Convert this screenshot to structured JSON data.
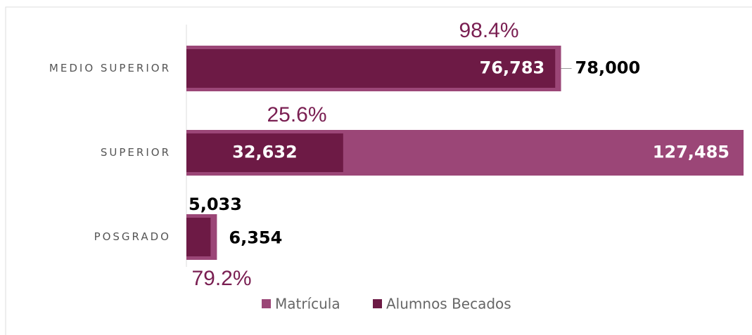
{
  "chart_data": {
    "type": "bar",
    "orientation": "horizontal",
    "categories": [
      "MEDIO SUPERIOR",
      "SUPERIOR",
      "POSGRADO"
    ],
    "series": [
      {
        "name": "Matrícula",
        "color": "#9b4677",
        "values": [
          78000,
          127485,
          6354
        ],
        "value_labels": [
          "78,000",
          "127,485",
          "6,354"
        ]
      },
      {
        "name": "Alumnos Becados",
        "color": "#6d1a45",
        "values": [
          76783,
          32632,
          5033
        ],
        "value_labels": [
          "76,783",
          "32,632",
          "5,033"
        ]
      }
    ],
    "annotations": [
      "98.4%",
      "25.6%",
      "79.2%"
    ],
    "xlim": [
      0,
      116000
    ],
    "legend": "bottom"
  }
}
